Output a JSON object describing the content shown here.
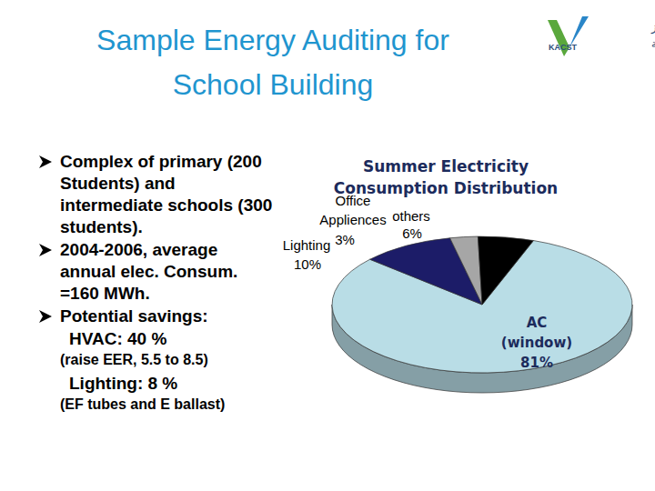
{
  "slide": {
    "title": "Sample Energy Auditing for School Building",
    "logo": {
      "arabic": [
        "مدينة الملك عبدالعزيز",
        "للعلوم والتقنية"
      ],
      "acronym": "KACST"
    },
    "bullets": [
      {
        "text": "Complex of primary (200 Students) and intermediate schools (300 students)."
      },
      {
        "text": "2004-2006, average annual elec. Consum. =160 MWh."
      },
      {
        "text": "Potential savings:",
        "sub": [
          {
            "text": "HVAC: 40 %",
            "note": "(raise EER, 5.5 to 8.5)"
          },
          {
            "text": "Lighting: 8 %",
            "note": "(EF tubes and E ballast)"
          }
        ]
      }
    ]
  },
  "chart_data": {
    "type": "pie",
    "title": "Summer Electricity Consumption Distribution",
    "categories": [
      "AC (window)",
      "Lighting",
      "Office Appliences",
      "others"
    ],
    "values": [
      81,
      10,
      3,
      6
    ],
    "value_labels": [
      "81%",
      "10%",
      "3%",
      "6%"
    ],
    "colors": [
      "#b9dde6",
      "#1c1c68",
      "#a6a6a6",
      "#000000"
    ],
    "data_labels": true
  }
}
